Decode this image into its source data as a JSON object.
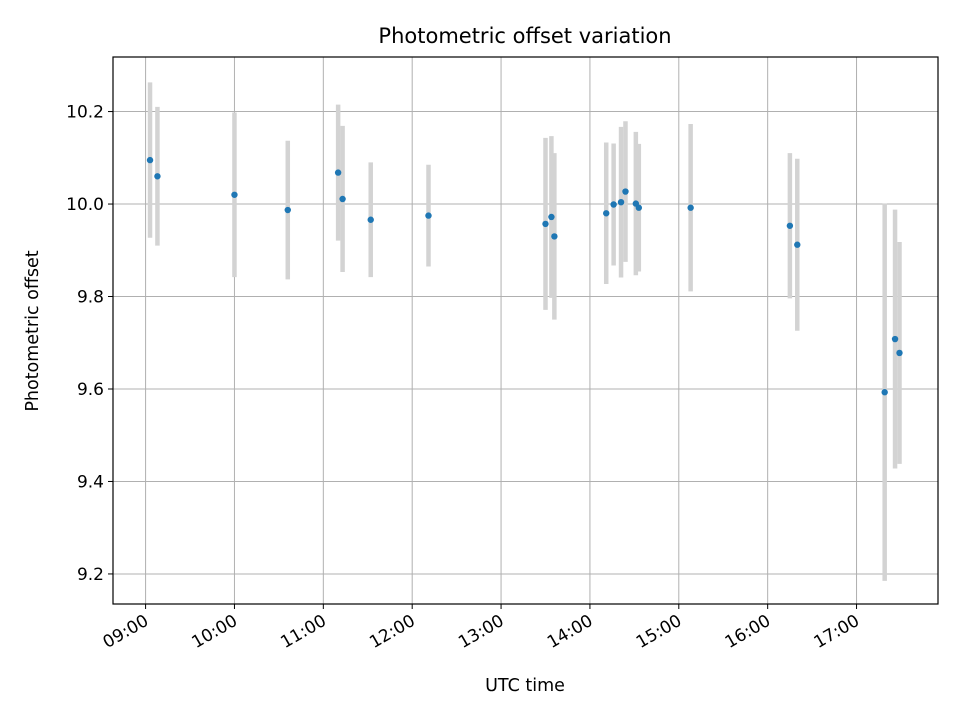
{
  "chart_data": {
    "type": "scatter",
    "title": "Photometric offset variation",
    "xlabel": "UTC time",
    "ylabel": "Photometric offset",
    "x_tick_labels": [
      "09:00",
      "10:00",
      "11:00",
      "12:00",
      "13:00",
      "14:00",
      "15:00",
      "16:00",
      "17:00"
    ],
    "y_tick_labels": [
      "9.2",
      "9.4",
      "9.6",
      "9.8",
      "10.0",
      "10.2"
    ],
    "y_ticks": [
      9.2,
      9.4,
      9.6,
      9.8,
      10.0,
      10.2
    ],
    "xlim": [
      "08:38",
      "17:55"
    ],
    "ylim": [
      9.135,
      10.318
    ],
    "grid": true,
    "marker_color": "#1f77b4",
    "errorbar_color": "#d3d3d3",
    "points": [
      {
        "x": "09:03",
        "y": 10.095,
        "yerr": 0.168
      },
      {
        "x": "09:08",
        "y": 10.06,
        "yerr": 0.15
      },
      {
        "x": "10:00",
        "y": 10.02,
        "yerr": 0.178
      },
      {
        "x": "10:36",
        "y": 9.987,
        "yerr": 0.15
      },
      {
        "x": "11:10",
        "y": 10.068,
        "yerr": 0.147
      },
      {
        "x": "11:13",
        "y": 10.011,
        "yerr": 0.158
      },
      {
        "x": "11:32",
        "y": 9.966,
        "yerr": 0.124
      },
      {
        "x": "12:11",
        "y": 9.975,
        "yerr": 0.11
      },
      {
        "x": "13:30",
        "y": 9.957,
        "yerr": 0.186
      },
      {
        "x": "13:34",
        "y": 9.972,
        "yerr": 0.175
      },
      {
        "x": "13:36",
        "y": 9.93,
        "yerr": 0.18
      },
      {
        "x": "14:11",
        "y": 9.98,
        "yerr": 0.153
      },
      {
        "x": "14:16",
        "y": 9.999,
        "yerr": 0.132
      },
      {
        "x": "14:21",
        "y": 10.004,
        "yerr": 0.163
      },
      {
        "x": "14:24",
        "y": 10.027,
        "yerr": 0.152
      },
      {
        "x": "14:31",
        "y": 10.001,
        "yerr": 0.155
      },
      {
        "x": "14:33",
        "y": 9.992,
        "yerr": 0.138
      },
      {
        "x": "15:08",
        "y": 9.992,
        "yerr": 0.181
      },
      {
        "x": "16:15",
        "y": 9.953,
        "yerr": 0.157
      },
      {
        "x": "16:20",
        "y": 9.912,
        "yerr": 0.186
      },
      {
        "x": "17:19",
        "y": 9.593,
        "yerr": 0.408
      },
      {
        "x": "17:26",
        "y": 9.708,
        "yerr": 0.28
      },
      {
        "x": "17:29",
        "y": 9.678,
        "yerr": 0.24
      }
    ]
  }
}
